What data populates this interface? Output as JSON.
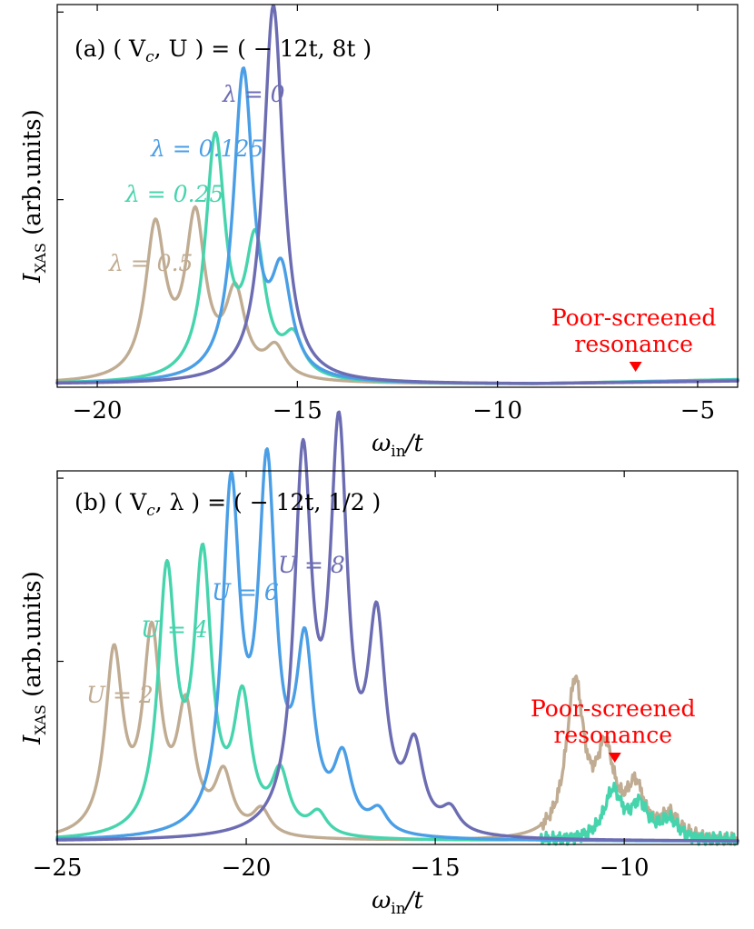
{
  "chart_data": [
    {
      "type": "line",
      "panel": "a",
      "title": "(a) ( V_c, U ) = ( − 12t, 8t )",
      "title_parts": {
        "prefix": "(a)",
        "params": "( V",
        "sub": "c",
        "rest": ", U ) = ( − 12t, 8t )"
      },
      "xlabel": "ω_in/t",
      "ylabel": "I_XAS (arb.units)",
      "xlim": [
        -21,
        -4
      ],
      "ylim": [
        0,
        1.02
      ],
      "xticks": [
        -20,
        -15,
        -10,
        -5
      ],
      "xtick_labels": [
        "−20",
        "−15",
        "−10",
        "−5"
      ],
      "yticks": [
        0.5,
        1.0
      ],
      "gamma": 0.3,
      "series": [
        {
          "name": "λ = 0.5",
          "label": "λ = 0.5",
          "color": "#c0ac92",
          "baseline": 0.008,
          "tail": 0.012,
          "peaks": [
            [
              -18.55,
              0.4
            ],
            [
              -17.55,
              0.42
            ],
            [
              -16.55,
              0.22
            ],
            [
              -15.55,
              0.08
            ]
          ]
        },
        {
          "name": "λ = 0.25",
          "label": "λ = 0.25",
          "color": "#46d4ad",
          "baseline": 0.008,
          "tail": 0.012,
          "peaks": [
            [
              -17.05,
              0.64
            ],
            [
              -16.05,
              0.35
            ],
            [
              -15.1,
              0.1
            ]
          ]
        },
        {
          "name": "λ = 0.125",
          "label": "λ = 0.125",
          "color": "#4a9ee6",
          "baseline": 0.008,
          "tail": 0.01,
          "peaks": [
            [
              -16.35,
              0.82
            ],
            [
              -15.4,
              0.26
            ]
          ]
        },
        {
          "name": "λ = 0",
          "label": "λ = 0",
          "color": "#6c6cb3",
          "baseline": 0.008,
          "tail": 0.008,
          "peaks": [
            [
              -15.6,
              1.01
            ]
          ]
        }
      ],
      "annotation": {
        "line1": "Poor-screened",
        "line2": "resonance",
        "x": -6.55,
        "color": "#ff0000"
      }
    },
    {
      "type": "line",
      "panel": "b",
      "title": "(b) ( V_c, λ ) = ( − 12t, 1/2 )",
      "title_parts": {
        "prefix": "(b)",
        "params": "( V",
        "sub": "c",
        "rest": ", λ ) = ( − 12t, 1/2 )"
      },
      "xlabel": "ω_in/t",
      "ylabel": "I_XAS (arb.units)",
      "xlim": [
        -25,
        -7
      ],
      "ylim": [
        0,
        1.02
      ],
      "xticks": [
        -25,
        -20,
        -15,
        -10
      ],
      "xtick_labels": [
        "−25",
        "−20",
        "−15",
        "−10"
      ],
      "yticks": [
        0.5,
        1.0
      ],
      "gamma": 0.28,
      "series": [
        {
          "name": "U = 2",
          "label": "U = 2",
          "color": "#c0ac92",
          "baseline": 0.008,
          "peaks": [
            [
              -23.5,
              0.49
            ],
            [
              -22.5,
              0.53
            ],
            [
              -21.6,
              0.33
            ],
            [
              -20.6,
              0.16
            ],
            [
              -19.6,
              0.07
            ],
            [
              -11.3,
              0.42
            ],
            [
              -10.5,
              0.22
            ],
            [
              -9.7,
              0.13
            ],
            [
              -8.8,
              0.06
            ]
          ]
        },
        {
          "name": "U = 4",
          "label": "U = 4",
          "color": "#46d4ad",
          "baseline": 0.008,
          "peaks": [
            [
              -22.1,
              0.7
            ],
            [
              -21.15,
              0.73
            ],
            [
              -20.1,
              0.35
            ],
            [
              -19.1,
              0.16
            ],
            [
              -18.1,
              0.06
            ],
            [
              -10.3,
              0.13
            ],
            [
              -9.6,
              0.09
            ],
            [
              -8.8,
              0.05
            ]
          ]
        },
        {
          "name": "U = 6",
          "label": "U = 6",
          "color": "#4a9ee6",
          "baseline": 0.008,
          "peaks": [
            [
              -20.4,
              0.92
            ],
            [
              -19.45,
              0.96
            ],
            [
              -18.45,
              0.48
            ],
            [
              -17.45,
              0.19
            ],
            [
              -16.5,
              0.06
            ]
          ]
        },
        {
          "name": "U = 8",
          "label": "U = 8",
          "color": "#6c6cb3",
          "baseline": 0.008,
          "peaks": [
            [
              -18.5,
              1.0
            ],
            [
              -17.55,
              1.05
            ],
            [
              -16.55,
              0.54
            ],
            [
              -15.55,
              0.22
            ],
            [
              -14.6,
              0.06
            ]
          ]
        }
      ],
      "annotation": {
        "line1": "Poor-screened",
        "line2": "resonance",
        "x": -10.25,
        "color": "#ff0000"
      }
    }
  ]
}
